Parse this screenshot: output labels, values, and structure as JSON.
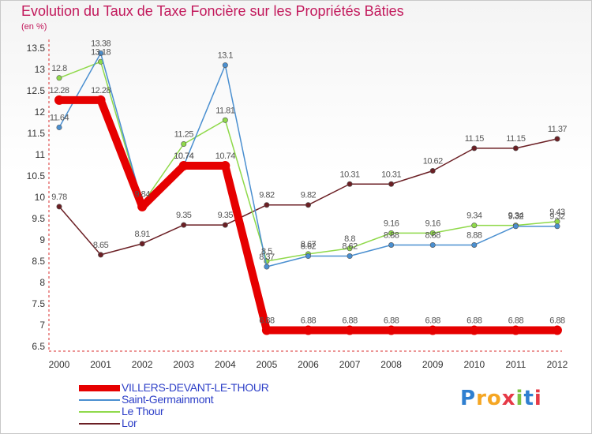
{
  "chart_data": {
    "type": "line",
    "title": "Evolution du Taux de Taxe Foncière sur les Propriétés Bâties",
    "unit_label": "(en %)",
    "xlabel": "",
    "ylabel": "",
    "ylim": [
      6.5,
      13.5
    ],
    "y_ticks": [
      "6.5",
      "7",
      "7.5",
      "8",
      "8.5",
      "9",
      "9.5",
      "10",
      "10.5",
      "11",
      "11.5",
      "12",
      "12.5",
      "13",
      "13.5"
    ],
    "categories": [
      "2000",
      "2001",
      "2002",
      "2003",
      "2004",
      "2005",
      "2006",
      "2007",
      "2008",
      "2009",
      "2010",
      "2011",
      "2012"
    ],
    "series": [
      {
        "name": "VILLERS-DEVANT-LE-THOUR",
        "color": "#e60000",
        "values": [
          12.28,
          12.28,
          9.78,
          10.74,
          10.74,
          6.88,
          6.88,
          6.88,
          6.88,
          6.88,
          6.88,
          6.88,
          6.88
        ],
        "labels": [
          "12.28",
          "12.28",
          "",
          "10.74",
          "10.74",
          "6.88",
          "6.88",
          "6.88",
          "6.88",
          "6.88",
          "6.88",
          "6.88",
          "6.88"
        ]
      },
      {
        "name": "Saint-Germainmont",
        "color": "#4a8fd0",
        "values": [
          11.64,
          13.38,
          9.86,
          10.74,
          13.1,
          8.37,
          8.62,
          8.62,
          8.88,
          8.88,
          8.88,
          9.32,
          9.32
        ],
        "labels": [
          "11.64",
          "13.38",
          "",
          "10.74",
          "13.1",
          "8.37",
          "8.62",
          "8.62",
          "8.88",
          "8.88",
          "8.88",
          "9.32",
          "9.32"
        ]
      },
      {
        "name": "Le Thour",
        "color": "#8fd94a",
        "values": [
          12.8,
          13.18,
          9.84,
          11.25,
          11.81,
          8.5,
          8.67,
          8.8,
          9.16,
          9.16,
          9.34,
          9.34,
          9.43
        ],
        "labels": [
          "12.8",
          "13.18",
          "9.84",
          "11.25",
          "11.81",
          "8.5",
          "8.67",
          "8.8",
          "9.16",
          "9.16",
          "9.34",
          "9.34",
          "9.43"
        ]
      },
      {
        "name": "Lor",
        "color": "#6b1f24",
        "values": [
          9.78,
          8.65,
          8.91,
          9.35,
          9.35,
          9.82,
          9.82,
          10.31,
          10.31,
          10.62,
          11.15,
          11.15,
          11.37
        ],
        "labels": [
          "9.78",
          "8.65",
          "8.91",
          "9.35",
          "9.35",
          "9.82",
          "9.82",
          "10.31",
          "10.31",
          "10.62",
          "11.15",
          "11.15",
          "11.37"
        ]
      }
    ],
    "grid": false,
    "legend_position": "bottom-left"
  },
  "logo": {
    "letters": [
      "P",
      "r",
      "o",
      "x",
      "i",
      "t",
      "i"
    ],
    "colors": [
      "#2f7fd0",
      "#f5a623",
      "#f5a623",
      "#e63946",
      "#7cc242",
      "#2f7fd0",
      "#e63946"
    ]
  }
}
